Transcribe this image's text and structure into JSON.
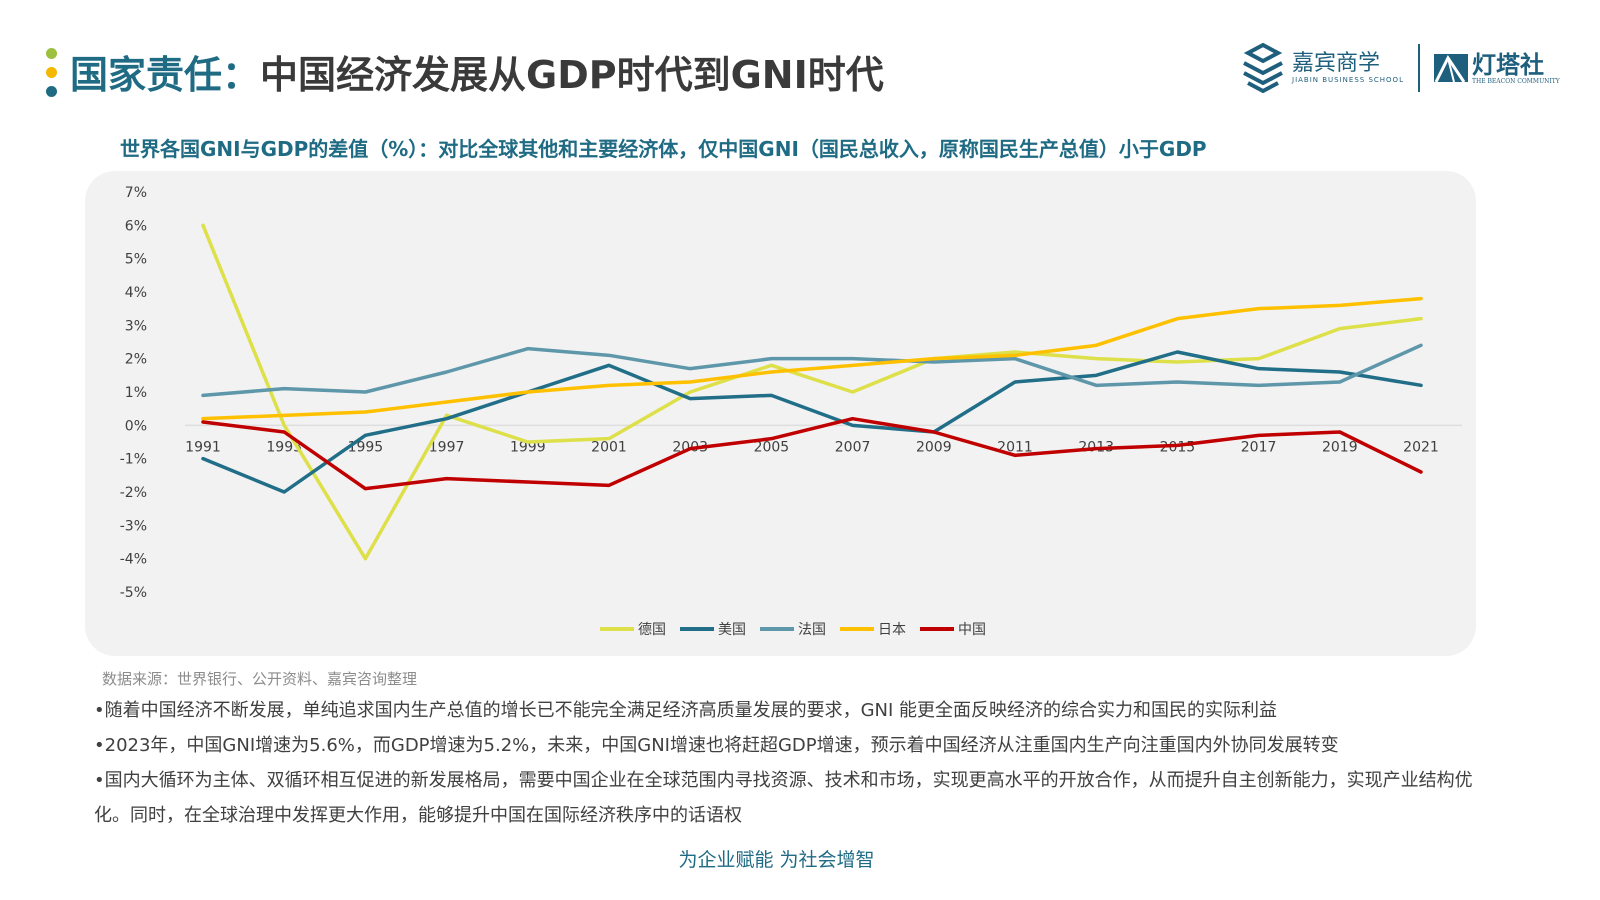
{
  "header": {
    "title_prefix": "国家责任：",
    "title_main": "中国经济发展从GDP时代到GNI时代",
    "dot_colors": [
      "#9dc03e",
      "#f5b800",
      "#1f6b84"
    ]
  },
  "logos": {
    "jiabin_cn": "嘉宾商学",
    "jiabin_en": "JIABIN BUSINESS SCHOOL",
    "beacon_cn": "灯塔社",
    "beacon_en": "THE BEACON COMMUNITY"
  },
  "subtitle": "世界各国GNI与GDP的差值（%）：对比全球其他和主要经济体，仅中国GNI（国民总收入，原称国民生产总值）小于GDP",
  "chart_data": {
    "type": "line",
    "title": "",
    "x": [
      "1991",
      "1993",
      "1995",
      "1997",
      "1999",
      "2001",
      "2003",
      "2005",
      "2007",
      "2009",
      "2011",
      "2013",
      "2015",
      "2017",
      "2019",
      "2021"
    ],
    "ylim": [
      -5,
      7
    ],
    "yticks": [
      "7%",
      "6%",
      "5%",
      "4%",
      "3%",
      "2%",
      "1%",
      "0%",
      "-1%",
      "-2%",
      "-3%",
      "-4%",
      "-5%"
    ],
    "ytick_values": [
      7,
      6,
      5,
      4,
      3,
      2,
      1,
      0,
      -1,
      -2,
      -3,
      -4,
      -5
    ],
    "grid": false,
    "legend_position": "bottom",
    "series": [
      {
        "name": "德国",
        "color": "#dde048",
        "values": [
          6.0,
          0.0,
          -4.0,
          0.3,
          -0.5,
          -0.4,
          1.0,
          1.8,
          1.0,
          2.0,
          2.2,
          2.0,
          1.9,
          2.0,
          2.9,
          3.2
        ]
      },
      {
        "name": "美国",
        "color": "#216e88",
        "values": [
          -1.0,
          -2.0,
          -0.3,
          0.2,
          1.0,
          1.8,
          0.8,
          0.9,
          0.0,
          -0.2,
          1.3,
          1.5,
          2.2,
          1.7,
          1.6,
          1.2
        ]
      },
      {
        "name": "法国",
        "color": "#5f97aa",
        "values": [
          0.9,
          1.1,
          1.0,
          1.6,
          2.3,
          2.1,
          1.7,
          2.0,
          2.0,
          1.9,
          2.0,
          1.2,
          1.3,
          1.2,
          1.3,
          2.4
        ]
      },
      {
        "name": "日本",
        "color": "#ffc000",
        "values": [
          0.2,
          0.3,
          0.4,
          0.7,
          1.0,
          1.2,
          1.3,
          1.6,
          1.8,
          2.0,
          2.1,
          2.4,
          3.2,
          3.5,
          3.6,
          3.8
        ]
      },
      {
        "name": "中国",
        "color": "#c00000",
        "values": [
          0.1,
          -0.2,
          -1.9,
          -1.6,
          -1.7,
          -1.8,
          -0.7,
          -0.4,
          0.2,
          -0.2,
          -0.9,
          -0.7,
          -0.6,
          -0.3,
          -0.2,
          -1.4
        ]
      }
    ]
  },
  "source": "数据来源：世界银行、公开资料、嘉宾咨询整理",
  "bullets": [
    "•随着中国经济不断发展，单纯追求国内生产总值的增长已不能完全满足经济高质量发展的要求，GNI 能更全面反映经济的综合实力和国民的实际利益",
    "•2023年，中国GNI增速为5.6%，而GDP增速为5.2%，未来，中国GNI增速也将赶超GDP增速，预示着中国经济从注重国内生产向注重国内外协同发展转变",
    "•国内大循环为主体、双循环相互促进的新发展格局，需要中国企业在全球范围内寻找资源、技术和市场，实现更高水平的开放合作，从而提升自主创新能力，实现产业结构优化。同时，在全球治理中发挥更大作用，能够提升中国在国际经济秩序中的话语权"
  ],
  "footer": "为企业赋能  为社会增智"
}
